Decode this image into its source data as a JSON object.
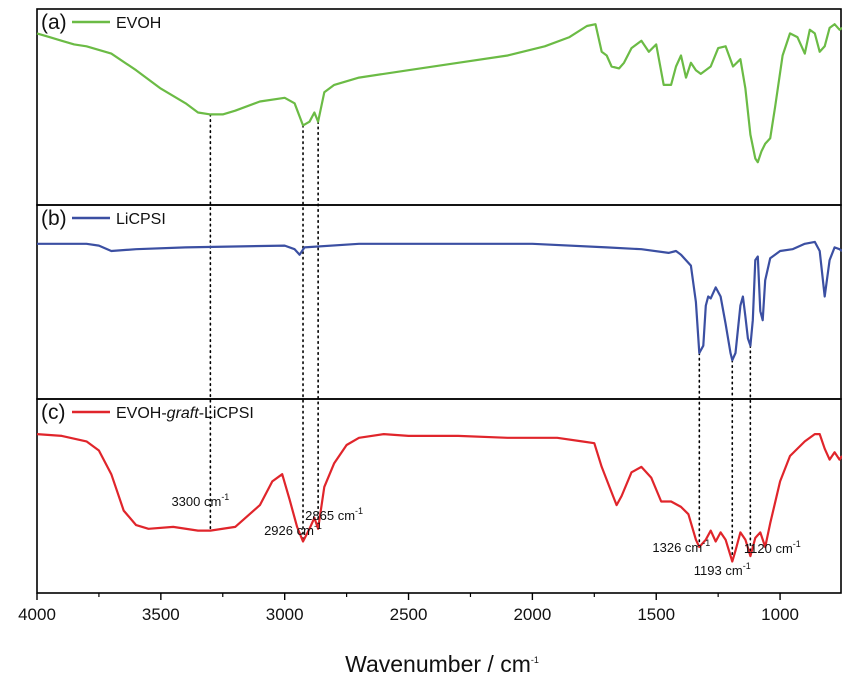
{
  "chart_data": {
    "type": "line",
    "xlabel": "Wavenumber / cm",
    "xlabel_sup": "-1",
    "xlim": [
      4000,
      750
    ],
    "x_ticks": [
      4000,
      3500,
      3000,
      2500,
      2000,
      1500,
      1000
    ],
    "y_ticks_shown": false,
    "grid": false,
    "legend_placement": "top-left of each panel",
    "panels": [
      {
        "tag": "(a)",
        "legend": {
          "text": "EVOH",
          "italic": "",
          "after": ""
        },
        "color": "#6bbb45",
        "series": {
          "name": "EVOH",
          "ylim": [
            0,
            1
          ],
          "points": [
            [
              4000,
              0.9
            ],
            [
              3950,
              0.88
            ],
            [
              3900,
              0.86
            ],
            [
              3850,
              0.84
            ],
            [
              3800,
              0.83
            ],
            [
              3700,
              0.79
            ],
            [
              3600,
              0.7
            ],
            [
              3500,
              0.6
            ],
            [
              3400,
              0.52
            ],
            [
              3350,
              0.47
            ],
            [
              3300,
              0.46
            ],
            [
              3250,
              0.46
            ],
            [
              3200,
              0.48
            ],
            [
              3100,
              0.53
            ],
            [
              3000,
              0.55
            ],
            [
              2960,
              0.52
            ],
            [
              2926,
              0.4
            ],
            [
              2900,
              0.42
            ],
            [
              2880,
              0.47
            ],
            [
              2865,
              0.42
            ],
            [
              2840,
              0.58
            ],
            [
              2800,
              0.62
            ],
            [
              2700,
              0.66
            ],
            [
              2500,
              0.7
            ],
            [
              2300,
              0.74
            ],
            [
              2100,
              0.78
            ],
            [
              1950,
              0.83
            ],
            [
              1850,
              0.88
            ],
            [
              1780,
              0.94
            ],
            [
              1745,
              0.95
            ],
            [
              1720,
              0.8
            ],
            [
              1700,
              0.78
            ],
            [
              1680,
              0.72
            ],
            [
              1650,
              0.71
            ],
            [
              1630,
              0.74
            ],
            [
              1600,
              0.82
            ],
            [
              1560,
              0.86
            ],
            [
              1530,
              0.8
            ],
            [
              1500,
              0.84
            ],
            [
              1470,
              0.62
            ],
            [
              1440,
              0.62
            ],
            [
              1420,
              0.72
            ],
            [
              1400,
              0.78
            ],
            [
              1380,
              0.66
            ],
            [
              1360,
              0.74
            ],
            [
              1340,
              0.7
            ],
            [
              1320,
              0.68
            ],
            [
              1280,
              0.72
            ],
            [
              1250,
              0.82
            ],
            [
              1220,
              0.83
            ],
            [
              1190,
              0.72
            ],
            [
              1160,
              0.76
            ],
            [
              1140,
              0.6
            ],
            [
              1120,
              0.35
            ],
            [
              1100,
              0.22
            ],
            [
              1090,
              0.2
            ],
            [
              1075,
              0.26
            ],
            [
              1060,
              0.3
            ],
            [
              1040,
              0.33
            ],
            [
              1020,
              0.5
            ],
            [
              990,
              0.78
            ],
            [
              960,
              0.9
            ],
            [
              930,
              0.88
            ],
            [
              900,
              0.79
            ],
            [
              880,
              0.92
            ],
            [
              860,
              0.9
            ],
            [
              840,
              0.8
            ],
            [
              820,
              0.83
            ],
            [
              800,
              0.93
            ],
            [
              780,
              0.95
            ],
            [
              760,
              0.92
            ],
            [
              750,
              0.93
            ]
          ]
        }
      },
      {
        "tag": "(b)",
        "legend": {
          "text": "LiCPSI",
          "italic": "",
          "after": ""
        },
        "color": "#3b4fa2",
        "series": {
          "name": "LiCPSI",
          "ylim": [
            0,
            1
          ],
          "points": [
            [
              4000,
              0.82
            ],
            [
              3800,
              0.82
            ],
            [
              3750,
              0.81
            ],
            [
              3700,
              0.78
            ],
            [
              3600,
              0.79
            ],
            [
              3400,
              0.8
            ],
            [
              3000,
              0.81
            ],
            [
              2960,
              0.79
            ],
            [
              2940,
              0.76
            ],
            [
              2920,
              0.8
            ],
            [
              2700,
              0.82
            ],
            [
              2500,
              0.82
            ],
            [
              2000,
              0.82
            ],
            [
              1700,
              0.8
            ],
            [
              1560,
              0.79
            ],
            [
              1450,
              0.77
            ],
            [
              1420,
              0.78
            ],
            [
              1400,
              0.76
            ],
            [
              1360,
              0.7
            ],
            [
              1340,
              0.5
            ],
            [
              1326,
              0.22
            ],
            [
              1310,
              0.26
            ],
            [
              1300,
              0.48
            ],
            [
              1290,
              0.53
            ],
            [
              1280,
              0.52
            ],
            [
              1260,
              0.58
            ],
            [
              1240,
              0.53
            ],
            [
              1220,
              0.38
            ],
            [
              1200,
              0.22
            ],
            [
              1193,
              0.18
            ],
            [
              1180,
              0.22
            ],
            [
              1160,
              0.48
            ],
            [
              1150,
              0.53
            ],
            [
              1140,
              0.42
            ],
            [
              1130,
              0.3
            ],
            [
              1120,
              0.26
            ],
            [
              1110,
              0.4
            ],
            [
              1100,
              0.73
            ],
            [
              1090,
              0.75
            ],
            [
              1080,
              0.45
            ],
            [
              1070,
              0.4
            ],
            [
              1060,
              0.62
            ],
            [
              1040,
              0.74
            ],
            [
              1000,
              0.78
            ],
            [
              950,
              0.79
            ],
            [
              900,
              0.82
            ],
            [
              860,
              0.83
            ],
            [
              840,
              0.78
            ],
            [
              820,
              0.53
            ],
            [
              800,
              0.73
            ],
            [
              780,
              0.8
            ],
            [
              760,
              0.79
            ],
            [
              750,
              0.78
            ]
          ]
        }
      },
      {
        "tag": "(c)",
        "legend": {
          "text": "EVOH-",
          "italic": "graft",
          "after": "-LiCPSI"
        },
        "color": "#e0252b",
        "series": {
          "name": "EVOH-graft-LiCPSI",
          "ylim": [
            0,
            1
          ],
          "points": [
            [
              4000,
              0.84
            ],
            [
              3900,
              0.83
            ],
            [
              3800,
              0.8
            ],
            [
              3750,
              0.75
            ],
            [
              3700,
              0.62
            ],
            [
              3650,
              0.42
            ],
            [
              3600,
              0.34
            ],
            [
              3550,
              0.32
            ],
            [
              3450,
              0.33
            ],
            [
              3350,
              0.31
            ],
            [
              3300,
              0.31
            ],
            [
              3200,
              0.33
            ],
            [
              3100,
              0.45
            ],
            [
              3050,
              0.58
            ],
            [
              3010,
              0.62
            ],
            [
              2980,
              0.48
            ],
            [
              2950,
              0.33
            ],
            [
              2926,
              0.25
            ],
            [
              2900,
              0.32
            ],
            [
              2880,
              0.38
            ],
            [
              2865,
              0.32
            ],
            [
              2840,
              0.55
            ],
            [
              2800,
              0.68
            ],
            [
              2750,
              0.78
            ],
            [
              2700,
              0.82
            ],
            [
              2600,
              0.84
            ],
            [
              2500,
              0.83
            ],
            [
              2300,
              0.83
            ],
            [
              2100,
              0.82
            ],
            [
              1900,
              0.82
            ],
            [
              1800,
              0.8
            ],
            [
              1750,
              0.79
            ],
            [
              1720,
              0.66
            ],
            [
              1680,
              0.52
            ],
            [
              1660,
              0.45
            ],
            [
              1640,
              0.5
            ],
            [
              1600,
              0.63
            ],
            [
              1560,
              0.66
            ],
            [
              1520,
              0.6
            ],
            [
              1480,
              0.47
            ],
            [
              1440,
              0.47
            ],
            [
              1400,
              0.44
            ],
            [
              1370,
              0.4
            ],
            [
              1340,
              0.26
            ],
            [
              1326,
              0.22
            ],
            [
              1300,
              0.26
            ],
            [
              1280,
              0.31
            ],
            [
              1260,
              0.25
            ],
            [
              1240,
              0.3
            ],
            [
              1220,
              0.26
            ],
            [
              1193,
              0.14
            ],
            [
              1180,
              0.2
            ],
            [
              1160,
              0.3
            ],
            [
              1140,
              0.26
            ],
            [
              1120,
              0.17
            ],
            [
              1100,
              0.27
            ],
            [
              1080,
              0.3
            ],
            [
              1060,
              0.22
            ],
            [
              1040,
              0.35
            ],
            [
              1000,
              0.58
            ],
            [
              960,
              0.72
            ],
            [
              900,
              0.8
            ],
            [
              860,
              0.84
            ],
            [
              840,
              0.84
            ],
            [
              820,
              0.76
            ],
            [
              800,
              0.7
            ],
            [
              780,
              0.74
            ],
            [
              760,
              0.7
            ],
            [
              750,
              0.72
            ]
          ]
        }
      }
    ],
    "guide_lines": [
      {
        "x": 3300,
        "from_panel": 0,
        "to_panel": 2
      },
      {
        "x": 2926,
        "from_panel": 0,
        "to_panel": 2
      },
      {
        "x": 2865,
        "from_panel": 0,
        "to_panel": 2
      },
      {
        "x": 1326,
        "from_panel": 1,
        "to_panel": 2
      },
      {
        "x": 1193,
        "from_panel": 1,
        "to_panel": 2
      },
      {
        "x": 1120,
        "from_panel": 1,
        "to_panel": 2
      }
    ],
    "annotations": [
      {
        "text": "3300 cm",
        "sup": "-1",
        "x": 3300
      },
      {
        "text": "2926 cm",
        "sup": "-1",
        "x": 2926
      },
      {
        "text": "2865 cm",
        "sup": "-1",
        "x": 2865
      },
      {
        "text": "1326 cm",
        "sup": "-1",
        "x": 1326
      },
      {
        "text": "1193 cm",
        "sup": "-1",
        "x": 1193
      },
      {
        "text": "1120 cm",
        "sup": "-1",
        "x": 1120
      }
    ]
  }
}
